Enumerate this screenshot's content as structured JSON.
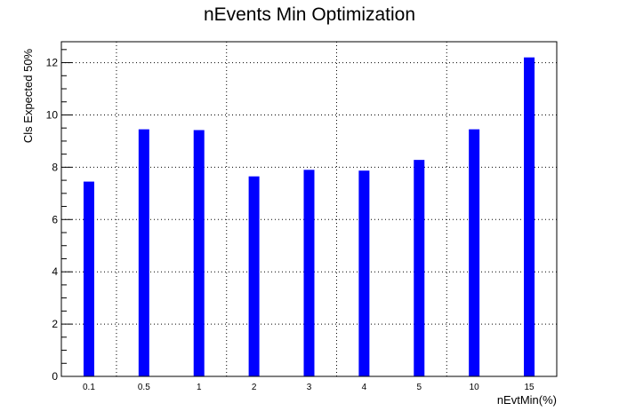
{
  "chart_data": {
    "type": "bar",
    "title": "nEvents Min Optimization",
    "xlabel": "nEvtMin(%)",
    "ylabel": "Cls Expected 50%",
    "categories": [
      "0.1",
      "0.5",
      "1",
      "2",
      "3",
      "4",
      "5",
      "10",
      "15"
    ],
    "values": [
      7.45,
      9.45,
      9.42,
      7.65,
      7.9,
      7.87,
      8.28,
      9.45,
      12.2
    ],
    "ylim": [
      0,
      12.8
    ],
    "yticks": [
      0,
      2,
      4,
      6,
      8,
      10,
      12
    ],
    "grid": true,
    "bar_color": "#0000ff",
    "legend": "none"
  }
}
